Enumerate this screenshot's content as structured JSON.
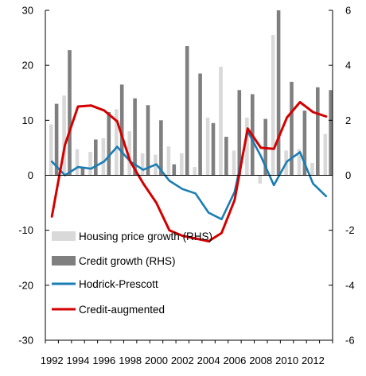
{
  "chart_data": {
    "type": "bar+line",
    "years": [
      1992,
      1993,
      1994,
      1995,
      1996,
      1997,
      1998,
      1999,
      2000,
      2001,
      2002,
      2003,
      2004,
      2005,
      2006,
      2007,
      2008,
      2009,
      2010,
      2011,
      2012,
      2013
    ],
    "x_tick_labels": [
      "1992",
      "1994",
      "1996",
      "1998",
      "2000",
      "2002",
      "2004",
      "2006",
      "2008",
      "2010",
      "2012"
    ],
    "left_axis": {
      "ylim": [
        -30,
        30
      ],
      "ticks": [
        30,
        20,
        10,
        0,
        -10,
        -20,
        -30
      ]
    },
    "right_axis": {
      "ylim": [
        -6,
        6
      ],
      "ticks": [
        6,
        4,
        2,
        0,
        -2,
        -4,
        -6
      ]
    },
    "bar_series": [
      {
        "name": "Housing price growth (RHS)",
        "color": "#d9d9d9",
        "values": [
          1.85,
          2.9,
          0.95,
          0.85,
          1.35,
          2.4,
          1.6,
          0.8,
          0.75,
          1.05,
          0.8,
          0.3,
          2.1,
          3.95,
          0.9,
          2.1,
          -0.3,
          5.1,
          0.9,
          0.95,
          0.45,
          1.5
        ]
      },
      {
        "name": "Credit growth (RHS)",
        "color": "#7f7f7f",
        "values": [
          2.6,
          4.55,
          0.3,
          1.3,
          2.3,
          3.3,
          2.8,
          2.55,
          2.0,
          0.4,
          4.7,
          3.7,
          1.9,
          1.4,
          3.1,
          2.95,
          2.05,
          6.0,
          3.4,
          2.35,
          3.2,
          3.1
        ]
      }
    ],
    "line_series": [
      {
        "name": "Hodrick-Prescott",
        "color": "#1a7db3",
        "values": [
          2.5,
          0.0,
          1.5,
          1.2,
          2.5,
          5.2,
          2.5,
          1.0,
          2.0,
          -1.0,
          -2.5,
          -3.3,
          -6.8,
          -8.0,
          -3.0,
          8.0,
          3.5,
          -1.8,
          2.5,
          4.2,
          -1.5,
          -3.8
        ]
      },
      {
        "name": "Credit-augmented",
        "color": "#d40000",
        "values": [
          -7.5,
          5.5,
          12.5,
          12.7,
          11.8,
          9.8,
          2.5,
          -1.5,
          -5.0,
          -10.0,
          -11.0,
          -11.5,
          -12.0,
          -10.5,
          -4.5,
          8.5,
          5.0,
          4.8,
          10.5,
          13.3,
          11.5,
          10.7
        ]
      }
    ],
    "legend": [
      "Housing price growth (RHS)",
      "Credit growth (RHS)",
      "Hodrick-Prescott",
      "Credit-augmented"
    ],
    "grid": false
  }
}
